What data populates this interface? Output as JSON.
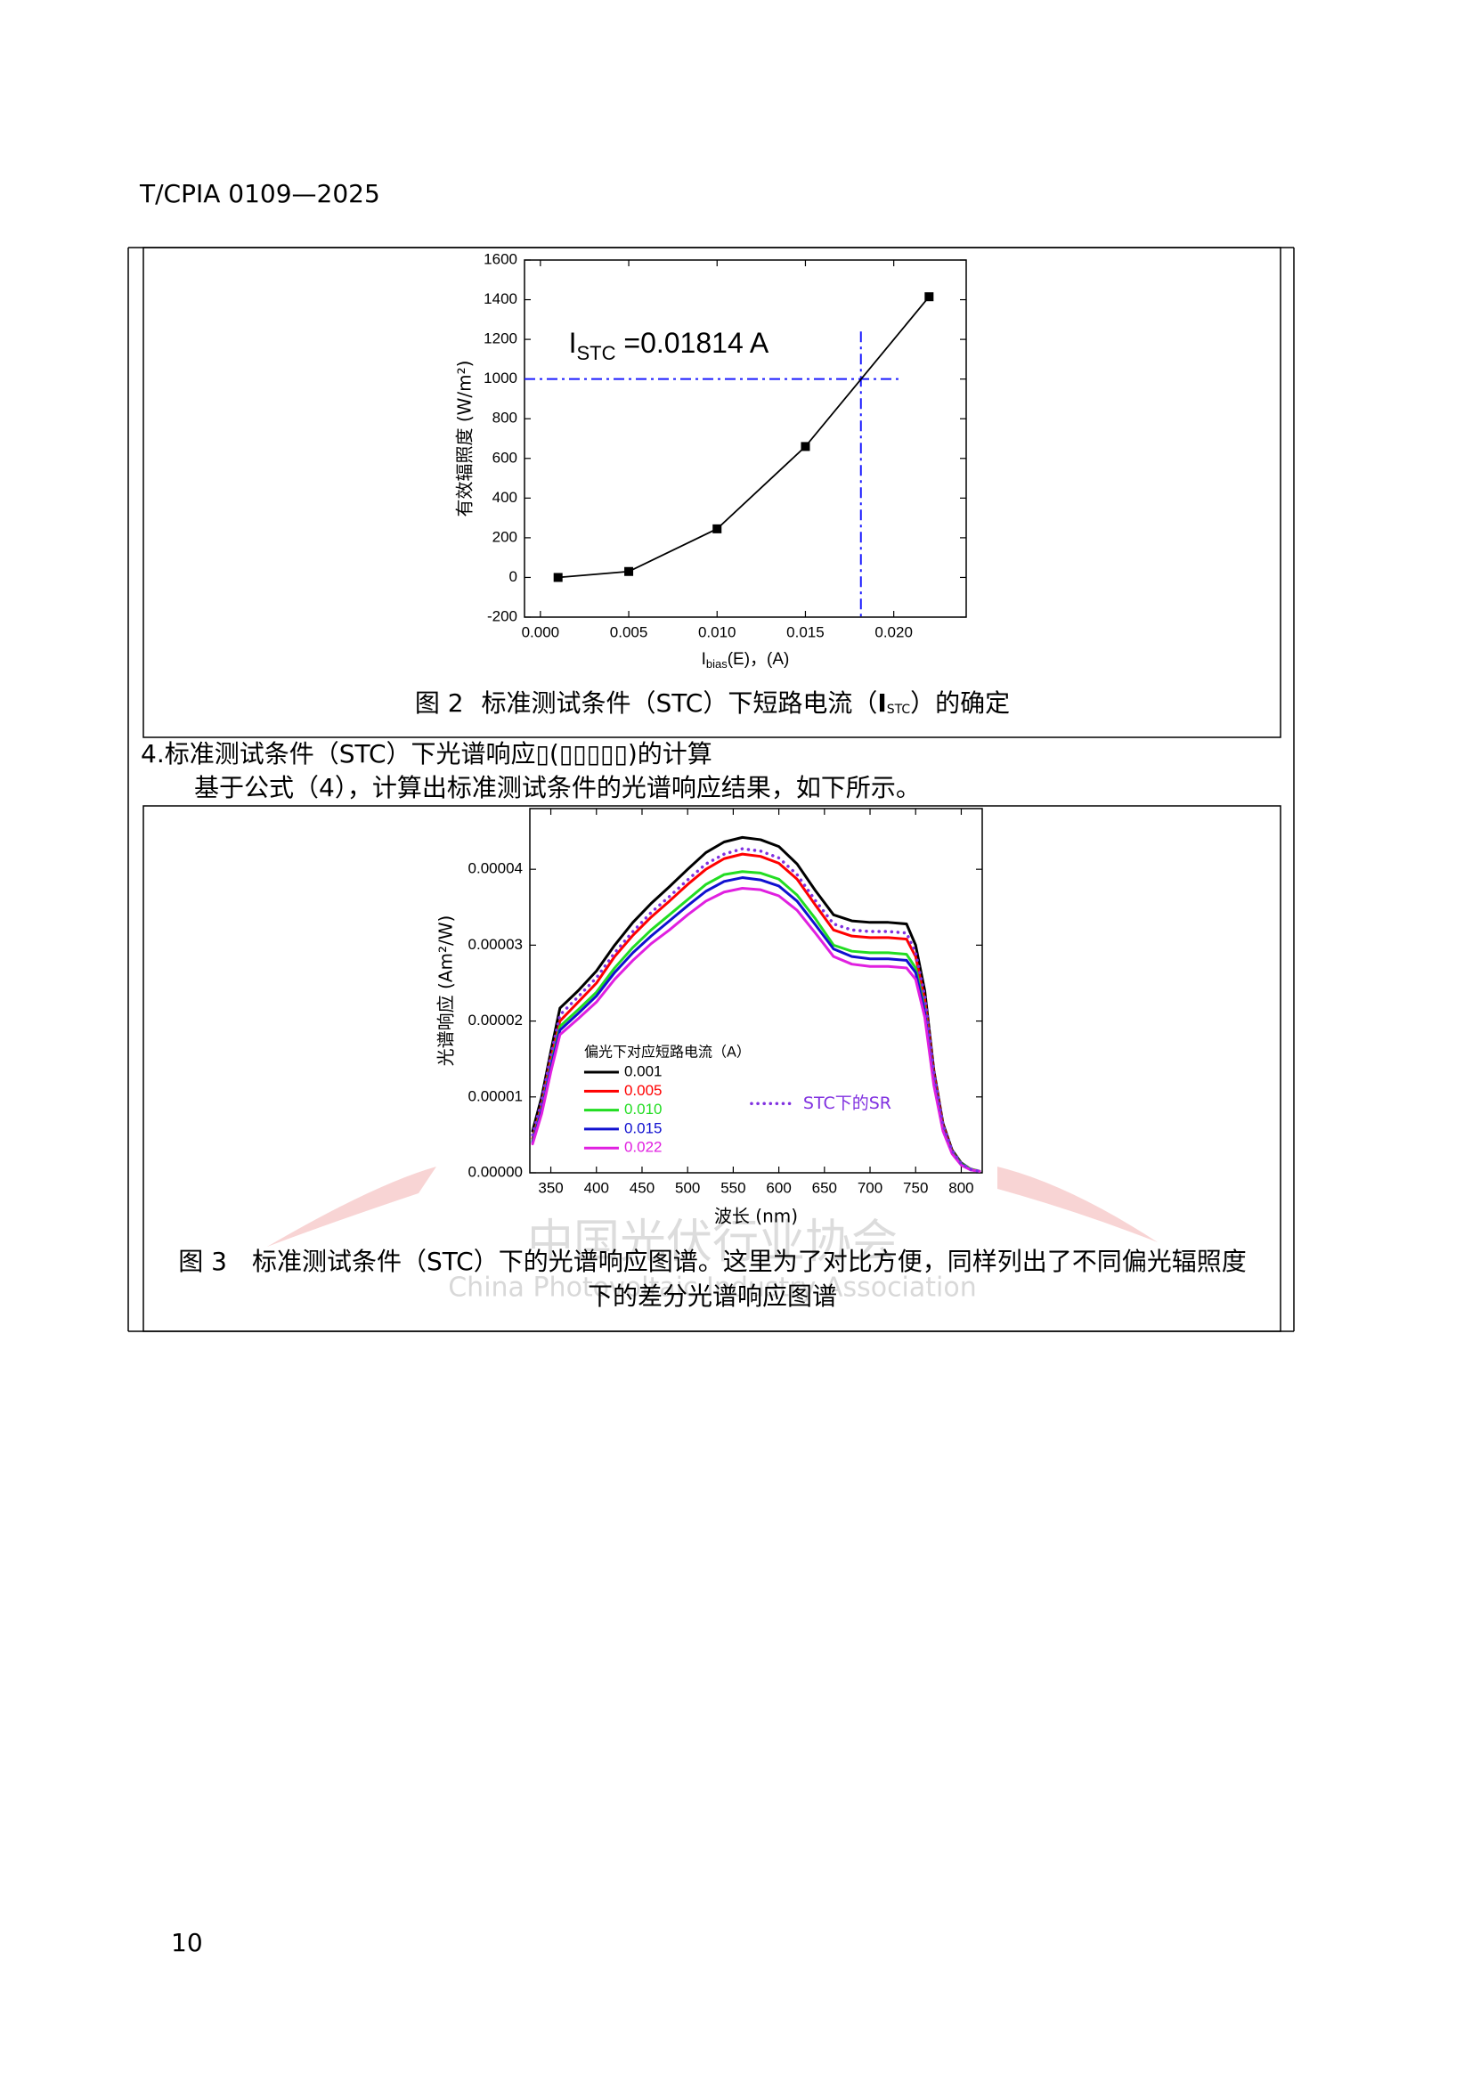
{
  "header": "T/CPIA 0109—2025",
  "chart_data": [
    {
      "type": "line",
      "markers": true,
      "color": "#000000",
      "x": [
        0.001,
        0.005,
        0.01,
        0.015,
        0.022
      ],
      "values": [
        0,
        30,
        245,
        660,
        1415
      ],
      "xlim": [
        -0.0009,
        0.0241
      ],
      "xticks": [
        {
          "value": 0,
          "label": "0.000"
        },
        0.005,
        {
          "value": 0.01,
          "label": "0.010"
        },
        0.015,
        {
          "value": 0.02,
          "label": "0.020"
        }
      ],
      "ylim": [
        -200,
        1600
      ],
      "yticks": [
        -200,
        0,
        200,
        400,
        600,
        800,
        1000,
        1200,
        1400,
        1600
      ],
      "ylabel": "有效辐照度 (W/m²)",
      "xlabel": {
        "main": "I",
        "sub": "bias",
        "rest": "(E)，(A)"
      },
      "annotation": {
        "main": "I",
        "sub": "STC",
        "rest": " =0.01814 A"
      },
      "reference_lines": {
        "y": 1000,
        "x": 0.01814,
        "color": "#1a1aff"
      }
    },
    {
      "type": "line",
      "x": [
        330,
        340,
        350,
        360,
        380,
        400,
        420,
        440,
        460,
        480,
        500,
        520,
        540,
        560,
        580,
        600,
        620,
        640,
        660,
        680,
        700,
        720,
        740,
        750,
        760,
        770,
        780,
        790,
        800,
        810,
        820
      ],
      "series": [
        {
          "name": "0.001",
          "color": "#000000",
          "style": "solid",
          "values": [
            5.5e-06,
            1e-05,
            1.6e-05,
            2.17e-05,
            2.4e-05,
            2.66e-05,
            3e-05,
            3.3e-05,
            3.55e-05,
            3.77e-05,
            4e-05,
            4.22e-05,
            4.36e-05,
            4.42e-05,
            4.39e-05,
            4.3e-05,
            4.07e-05,
            3.72e-05,
            3.4e-05,
            3.32e-05,
            3.3e-05,
            3.3e-05,
            3.28e-05,
            3e-05,
            2.4e-05,
            1.35e-05,
            6.5e-06,
            3e-06,
            1.3e-06,
            5e-07,
            2e-07
          ]
        },
        {
          "name": "0.005",
          "color": "#ff0000",
          "style": "solid",
          "values": [
            4.5e-06,
            9e-06,
            1.5e-05,
            2e-05,
            2.25e-05,
            2.5e-05,
            2.85e-05,
            3.13e-05,
            3.37e-05,
            3.58e-05,
            3.8e-05,
            4e-05,
            4.14e-05,
            4.2e-05,
            4.17e-05,
            4.08e-05,
            3.87e-05,
            3.53e-05,
            3.2e-05,
            3.12e-05,
            3.1e-05,
            3.1e-05,
            3.08e-05,
            2.85e-05,
            2.28e-05,
            1.3e-05,
            6.2e-06,
            2.8e-06,
            1.2e-06,
            5e-07,
            2e-07
          ]
        },
        {
          "name": "0.010",
          "color": "#22dd22",
          "style": "solid",
          "values": [
            4.2e-06,
            8.5e-06,
            1.42e-05,
            1.93e-05,
            2.15e-05,
            2.38e-05,
            2.7e-05,
            2.97e-05,
            3.2e-05,
            3.4e-05,
            3.6e-05,
            3.8e-05,
            3.93e-05,
            3.97e-05,
            3.95e-05,
            3.87e-05,
            3.66e-05,
            3.35e-05,
            3e-05,
            2.92e-05,
            2.9e-05,
            2.9e-05,
            2.88e-05,
            2.7e-05,
            2.16e-05,
            1.22e-05,
            5.8e-06,
            2.7e-06,
            1.2e-06,
            5e-07,
            2e-07
          ]
        },
        {
          "name": "0.015",
          "color": "#1010d0",
          "style": "solid",
          "values": [
            4e-06,
            8.2e-06,
            1.38e-05,
            1.88e-05,
            2.1e-05,
            2.33e-05,
            2.64e-05,
            2.9e-05,
            3.12e-05,
            3.32e-05,
            3.52e-05,
            3.71e-05,
            3.84e-05,
            3.89e-05,
            3.86e-05,
            3.78e-05,
            3.58e-05,
            3.27e-05,
            2.95e-05,
            2.85e-05,
            2.82e-05,
            2.82e-05,
            2.8e-05,
            2.64e-05,
            2.12e-05,
            1.2e-05,
            5.7e-06,
            2.6e-06,
            1.1e-06,
            4e-07,
            2e-07
          ]
        },
        {
          "name": "0.022",
          "color": "#e020e0",
          "style": "solid",
          "values": [
            3.8e-06,
            7.8e-06,
            1.33e-05,
            1.82e-05,
            2.03e-05,
            2.25e-05,
            2.55e-05,
            2.8e-05,
            3.02e-05,
            3.2e-05,
            3.4e-05,
            3.58e-05,
            3.7e-05,
            3.75e-05,
            3.73e-05,
            3.65e-05,
            3.46e-05,
            3.16e-05,
            2.85e-05,
            2.75e-05,
            2.72e-05,
            2.72e-05,
            2.7e-05,
            2.55e-05,
            2.05e-05,
            1.15e-05,
            5.5e-06,
            2.5e-06,
            1e-06,
            4e-07,
            2e-07
          ]
        },
        {
          "name": "STC下的SR",
          "color": "#8030e0",
          "style": "dotted",
          "values": [
            5e-06,
            9.5e-06,
            1.55e-05,
            2.08e-05,
            2.32e-05,
            2.57e-05,
            2.9e-05,
            3.18e-05,
            3.43e-05,
            3.64e-05,
            3.86e-05,
            4.07e-05,
            4.2e-05,
            4.27e-05,
            4.24e-05,
            4.15e-05,
            3.93e-05,
            3.59e-05,
            3.28e-05,
            3.2e-05,
            3.18e-05,
            3.18e-05,
            3.16e-05,
            2.9e-05,
            2.33e-05,
            1.32e-05,
            6.3e-06,
            2.9e-06,
            1.2e-06,
            5e-07,
            2e-07
          ]
        }
      ],
      "xlim": [
        327,
        823
      ],
      "xticks": [
        350,
        400,
        450,
        500,
        550,
        600,
        650,
        700,
        750,
        800
      ],
      "ylim": [
        0,
        4.8e-05
      ],
      "yticks": [
        {
          "value": 0,
          "label": "0.00000"
        },
        {
          "value": 1e-05,
          "label": "0.00001"
        },
        {
          "value": 2e-05,
          "label": "0.00002"
        },
        {
          "value": 3e-05,
          "label": "0.00003"
        },
        {
          "value": 4e-05,
          "label": "0.00004"
        }
      ],
      "ylabel": "光谱响应 (Am²/W)",
      "xlabel": "波长 (nm)",
      "legend_title": "偏光下对应短路电流（A）"
    }
  ],
  "figure2_caption": {
    "number": "图 2",
    "before": "标准测试条件（STC）下短路电流（",
    "symbol": "I",
    "subscript": "STC",
    "after": "）的确定"
  },
  "section_heading": "4.标准测试条件（STC）下光谱响应▯(▯▯▯▯▯)的计算",
  "paragraph": "基于公式（4），计算出标准测试条件的光谱响应结果，如下所示。",
  "figure3_caption": [
    "图 3　标准测试条件（STC）下的光谱响应图谱。这里为了对比方便，同样列出了不同偏光辐照度",
    "下的差分光谱响应图谱"
  ],
  "watermark": {
    "cn": "中国光伏行业协会",
    "en": "China Photovoltaic Industry Association"
  },
  "page_number": "10"
}
